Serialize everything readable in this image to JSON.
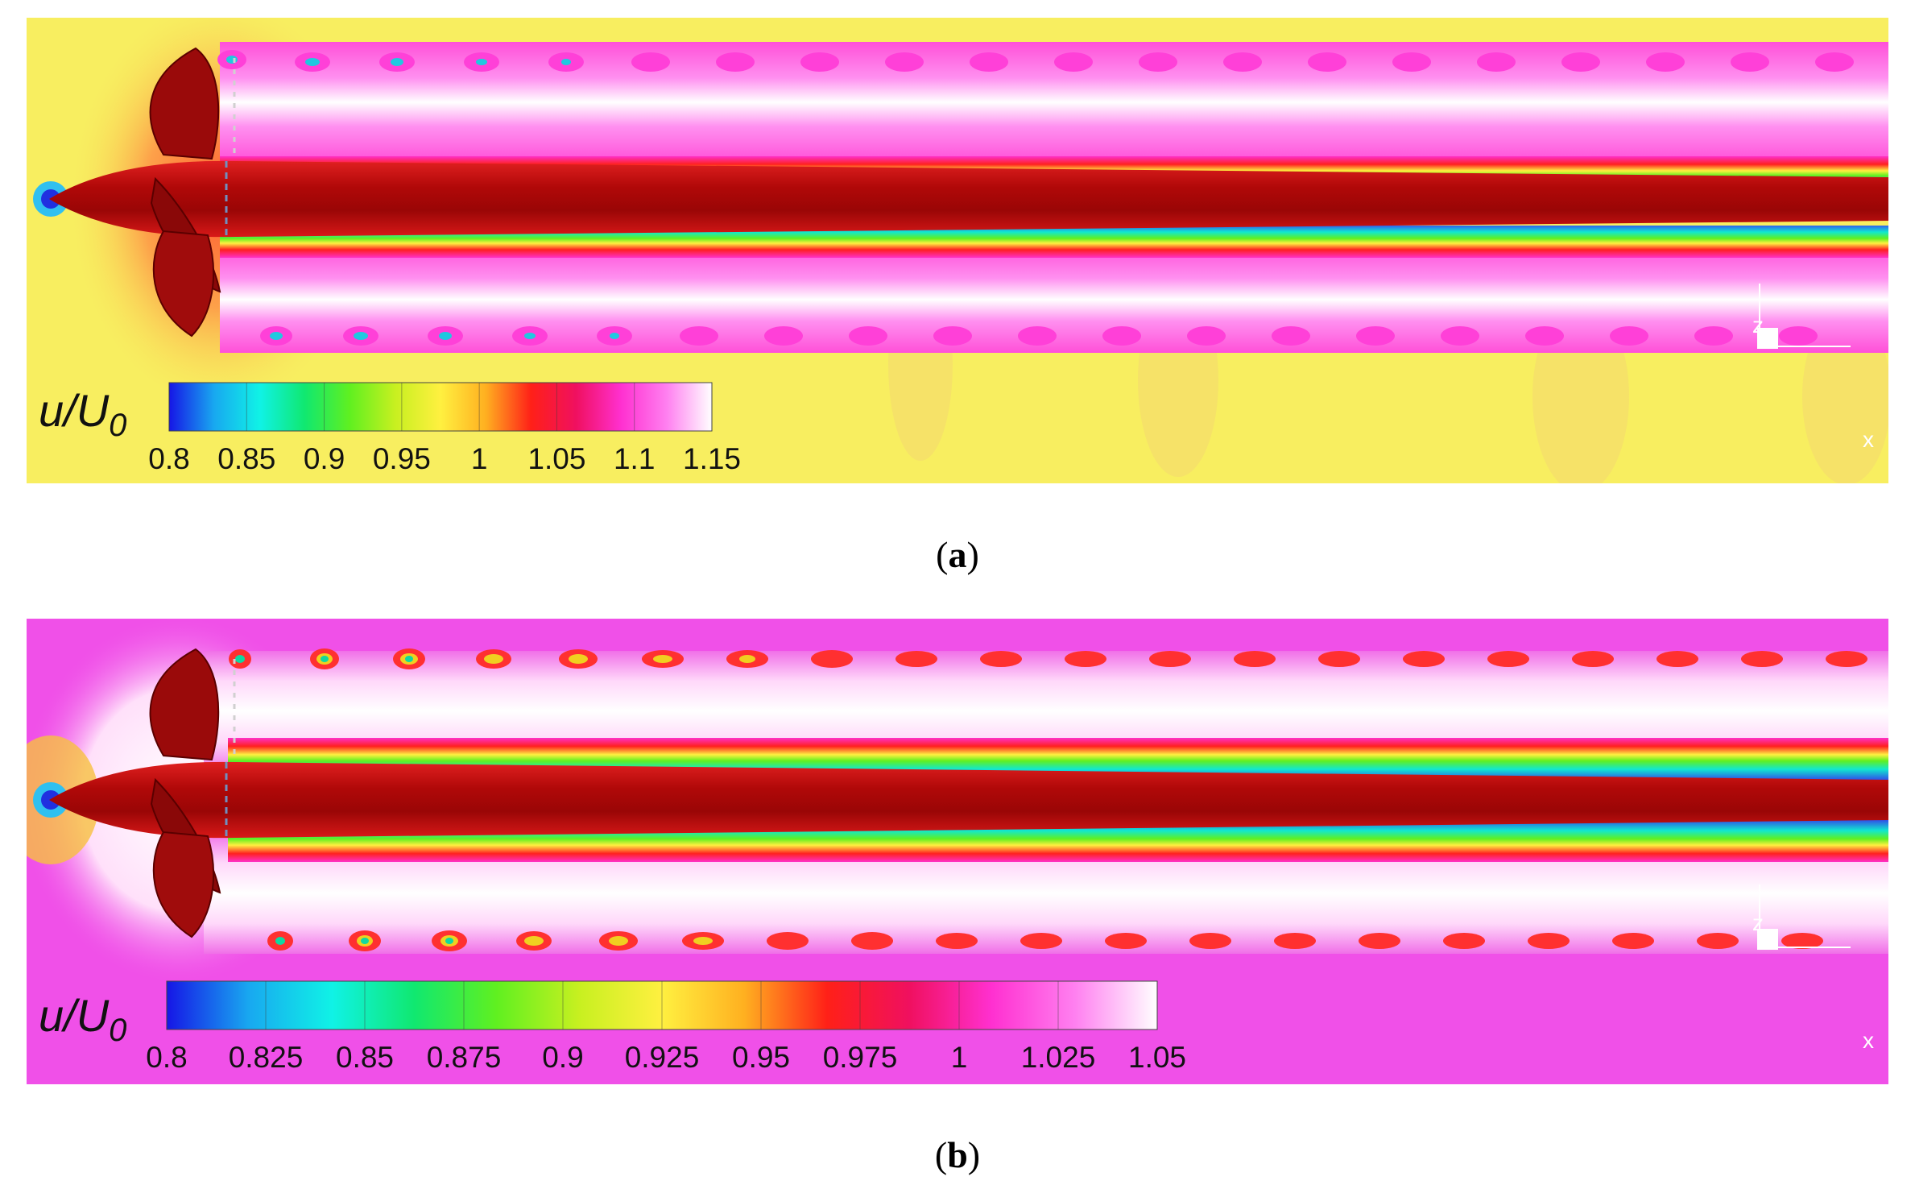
{
  "panels": [
    {
      "caption_letter": "a",
      "colorbar": {
        "label_main": "u/U",
        "label_sub": "0",
        "ticks": [
          "0.8",
          "0.85",
          "0.9",
          "0.95",
          "1",
          "1.05",
          "1.1",
          "1.15"
        ],
        "stops": [
          "#1616e6",
          "#18a8f0",
          "#10f2e6",
          "#10e870",
          "#60f020",
          "#c8f020",
          "#fff040",
          "#ffb020",
          "#ff2018",
          "#f01060",
          "#ff30d0",
          "#ff80f0",
          "#ffffff"
        ]
      },
      "background_color": "#f8ee60"
    },
    {
      "caption_letter": "b",
      "colorbar": {
        "label_main": "u/U",
        "label_sub": "0",
        "ticks": [
          "0.8",
          "0.825",
          "0.85",
          "0.875",
          "0.9",
          "0.925",
          "0.95",
          "0.975",
          "1",
          "1.025",
          "1.05"
        ],
        "stops": [
          "#1616e6",
          "#18a8f0",
          "#10f2e6",
          "#10e870",
          "#60f020",
          "#c8f020",
          "#fff040",
          "#ffb020",
          "#ff2018",
          "#f01060",
          "#ff30d0",
          "#ff80f0",
          "#ffffff"
        ]
      },
      "background_color": "#f050e8"
    }
  ],
  "axes_triad": {
    "z": "z",
    "x": "x"
  }
}
